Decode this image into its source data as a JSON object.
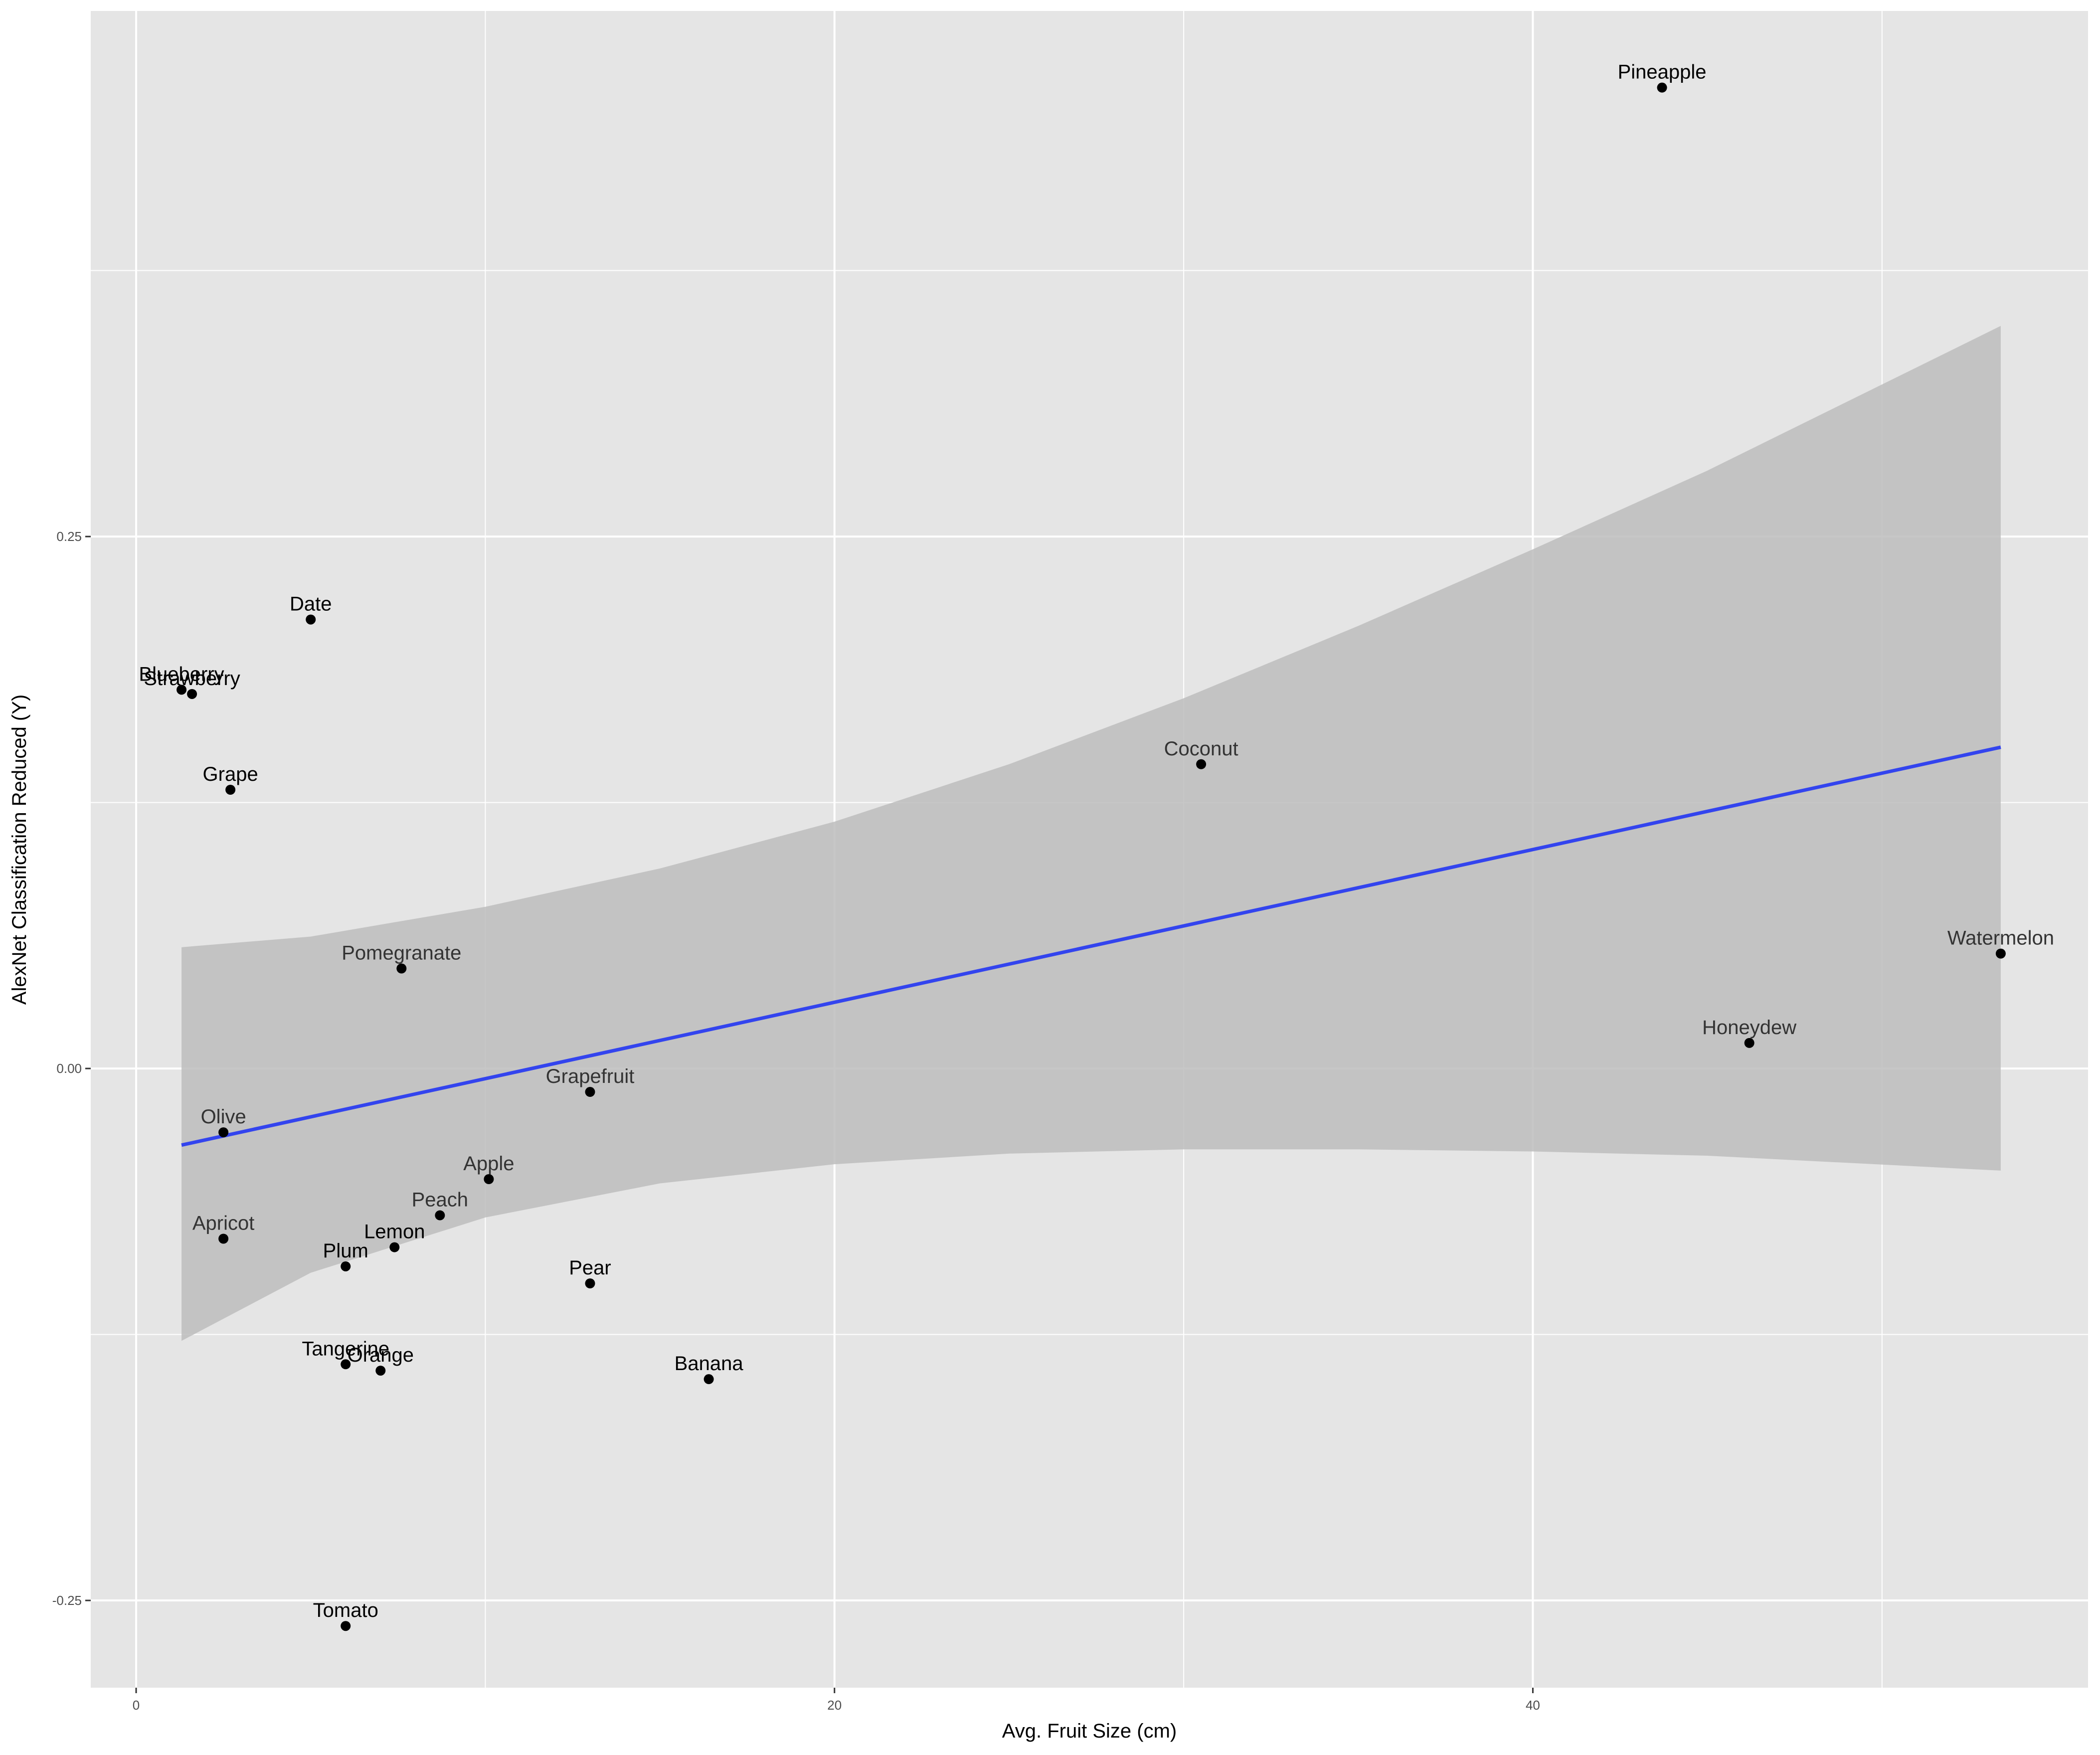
{
  "chart_data": {
    "type": "scatter",
    "title": "",
    "xlabel": "Avg. Fruit Size (cm)",
    "ylabel": "AlexNet Classification Reduced (Y)",
    "xlim": [
      -1.3,
      55.9
    ],
    "ylim": [
      -0.291,
      0.497
    ],
    "x_ticks": [
      0,
      20,
      40
    ],
    "x_tick_labels": [
      "0",
      "20",
      "40"
    ],
    "y_ticks": [
      -0.25,
      0,
      0.25
    ],
    "y_tick_labels": [
      "-0.25",
      "0.00",
      "0.25"
    ],
    "grid": true,
    "legend": "none",
    "colors": {
      "panel": "#e5e5e5",
      "grid": "#ffffff",
      "point": "#000000",
      "label_outside": "#000000",
      "label_inside": "#333333",
      "fit_line": "#3344ee",
      "confidence_band": "#bdbdbd"
    },
    "points": [
      {
        "label": "Pineapple",
        "x": 43.7,
        "y": 0.461
      },
      {
        "label": "Date",
        "x": 5.0,
        "y": 0.211
      },
      {
        "label": "Blueberry",
        "x": 1.3,
        "y": 0.178
      },
      {
        "label": "Strawberry",
        "x": 1.6,
        "y": 0.176
      },
      {
        "label": "Grape",
        "x": 2.7,
        "y": 0.131
      },
      {
        "label": "Coconut",
        "x": 30.5,
        "y": 0.143
      },
      {
        "label": "Watermelon",
        "x": 53.4,
        "y": 0.054
      },
      {
        "label": "Pomegranate",
        "x": 7.6,
        "y": 0.047
      },
      {
        "label": "Honeydew",
        "x": 46.2,
        "y": 0.012
      },
      {
        "label": "Grapefruit",
        "x": 13.0,
        "y": -0.011
      },
      {
        "label": "Olive",
        "x": 2.5,
        "y": -0.03
      },
      {
        "label": "Apple",
        "x": 10.1,
        "y": -0.052
      },
      {
        "label": "Peach",
        "x": 8.7,
        "y": -0.069
      },
      {
        "label": "Apricot",
        "x": 2.5,
        "y": -0.08
      },
      {
        "label": "Lemon",
        "x": 7.4,
        "y": -0.084
      },
      {
        "label": "Plum",
        "x": 6.0,
        "y": -0.093
      },
      {
        "label": "Pear",
        "x": 13.0,
        "y": -0.101
      },
      {
        "label": "Tangerine",
        "x": 6.0,
        "y": -0.139
      },
      {
        "label": "Orange",
        "x": 7.0,
        "y": -0.142
      },
      {
        "label": "Banana",
        "x": 16.4,
        "y": -0.146
      },
      {
        "label": "Tomato",
        "x": 6.0,
        "y": -0.262
      }
    ],
    "fit_line": {
      "x": [
        1.3,
        53.4
      ],
      "y": [
        -0.036,
        0.151
      ]
    },
    "confidence_band": {
      "x": [
        1.3,
        5,
        10,
        15,
        20,
        25,
        30,
        35,
        40,
        45,
        53.4
      ],
      "lower": [
        -0.128,
        -0.096,
        -0.07,
        -0.054,
        -0.045,
        -0.04,
        -0.038,
        -0.038,
        -0.039,
        -0.041,
        -0.048
      ],
      "upper": [
        0.057,
        0.062,
        0.076,
        0.094,
        0.116,
        0.143,
        0.174,
        0.208,
        0.244,
        0.281,
        0.349
      ]
    }
  }
}
